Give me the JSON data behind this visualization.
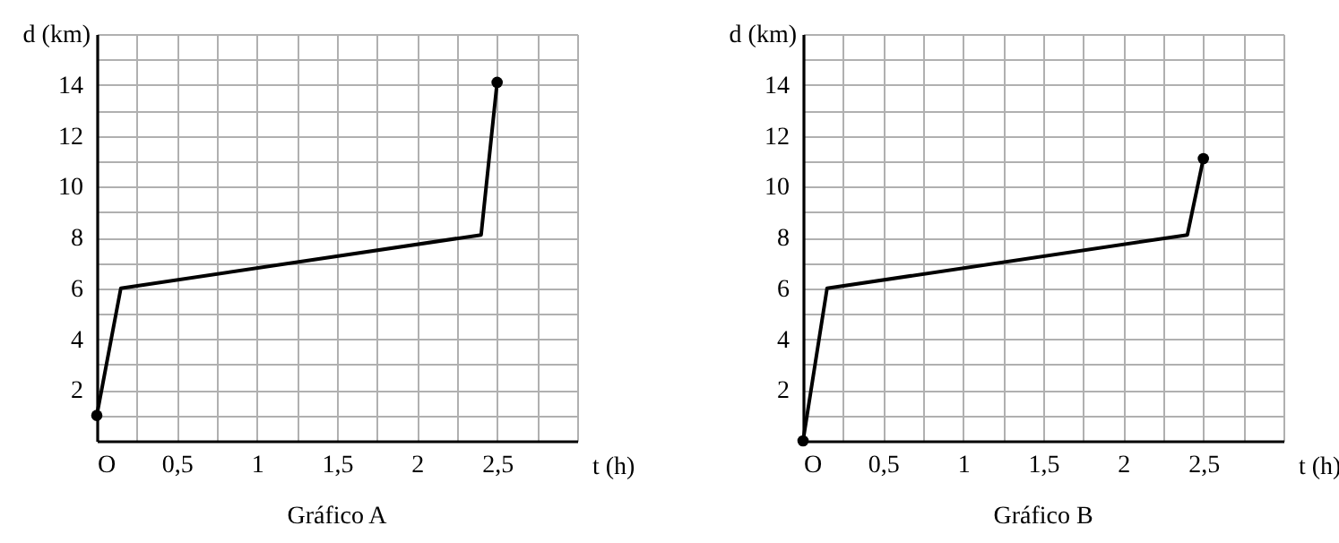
{
  "chart_data": [
    {
      "type": "line",
      "title": "Gráfico A",
      "xlabel": "t (h)",
      "ylabel": "d (km)",
      "xlim": [
        0,
        3
      ],
      "ylim": [
        0,
        16
      ],
      "xticks": [
        {
          "value": 0,
          "label": "O"
        },
        {
          "value": 0.25,
          "label": null
        },
        {
          "value": 0.5,
          "label": "0,5"
        },
        {
          "value": 0.75,
          "label": null
        },
        {
          "value": 1,
          "label": "1"
        },
        {
          "value": 1.25,
          "label": null
        },
        {
          "value": 1.5,
          "label": "1,5"
        },
        {
          "value": 1.75,
          "label": null
        },
        {
          "value": 2,
          "label": "2"
        },
        {
          "value": 2.25,
          "label": null
        },
        {
          "value": 2.5,
          "label": "2,5"
        },
        {
          "value": 2.75,
          "label": null
        },
        {
          "value": 3,
          "label": null
        }
      ],
      "yticks": [
        {
          "value": 0,
          "label": null
        },
        {
          "value": 1,
          "label": null
        },
        2,
        {
          "value": 3,
          "label": null
        },
        4,
        {
          "value": 5,
          "label": null
        },
        6,
        {
          "value": 7,
          "label": null
        },
        8,
        {
          "value": 9,
          "label": null
        },
        10,
        {
          "value": 11,
          "label": null
        },
        12,
        {
          "value": 13,
          "label": null
        },
        14,
        {
          "value": 15,
          "label": null
        },
        {
          "value": 16,
          "label": null
        }
      ],
      "grid": true,
      "series": [
        {
          "type": "line",
          "color": "#000000",
          "x": [
            0,
            0.15,
            2.4,
            2.5
          ],
          "values": [
            1,
            6,
            8.1,
            14.1
          ]
        },
        {
          "type": "scatter",
          "marker": "circle",
          "color": "#000000",
          "x": [
            0,
            2.5
          ],
          "values": [
            1,
            14.1
          ]
        }
      ]
    },
    {
      "type": "line",
      "title": "Gráfico B",
      "xlabel": "t (h)",
      "ylabel": "d (km)",
      "xlim": [
        0,
        3
      ],
      "ylim": [
        0,
        16
      ],
      "xticks": [
        {
          "value": 0,
          "label": "O"
        },
        {
          "value": 0.25,
          "label": null
        },
        {
          "value": 0.5,
          "label": "0,5"
        },
        {
          "value": 0.75,
          "label": null
        },
        {
          "value": 1,
          "label": "1"
        },
        {
          "value": 1.25,
          "label": null
        },
        {
          "value": 1.5,
          "label": "1,5"
        },
        {
          "value": 1.75,
          "label": null
        },
        {
          "value": 2,
          "label": "2"
        },
        {
          "value": 2.25,
          "label": null
        },
        {
          "value": 2.5,
          "label": "2,5"
        },
        {
          "value": 2.75,
          "label": null
        },
        {
          "value": 3,
          "label": null
        }
      ],
      "yticks": [
        {
          "value": 0,
          "label": null
        },
        {
          "value": 1,
          "label": null
        },
        2,
        {
          "value": 3,
          "label": null
        },
        4,
        {
          "value": 5,
          "label": null
        },
        6,
        {
          "value": 7,
          "label": null
        },
        8,
        {
          "value": 9,
          "label": null
        },
        10,
        {
          "value": 11,
          "label": null
        },
        12,
        {
          "value": 13,
          "label": null
        },
        14,
        {
          "value": 15,
          "label": null
        },
        {
          "value": 16,
          "label": null
        }
      ],
      "grid": true,
      "series": [
        {
          "type": "line",
          "color": "#000000",
          "x": [
            0,
            0.15,
            2.4,
            2.5
          ],
          "values": [
            0,
            6,
            8.1,
            11.1
          ]
        },
        {
          "type": "scatter",
          "marker": "circle",
          "color": "#000000",
          "x": [
            0,
            2.5
          ],
          "values": [
            0,
            11.1
          ]
        }
      ]
    }
  ]
}
